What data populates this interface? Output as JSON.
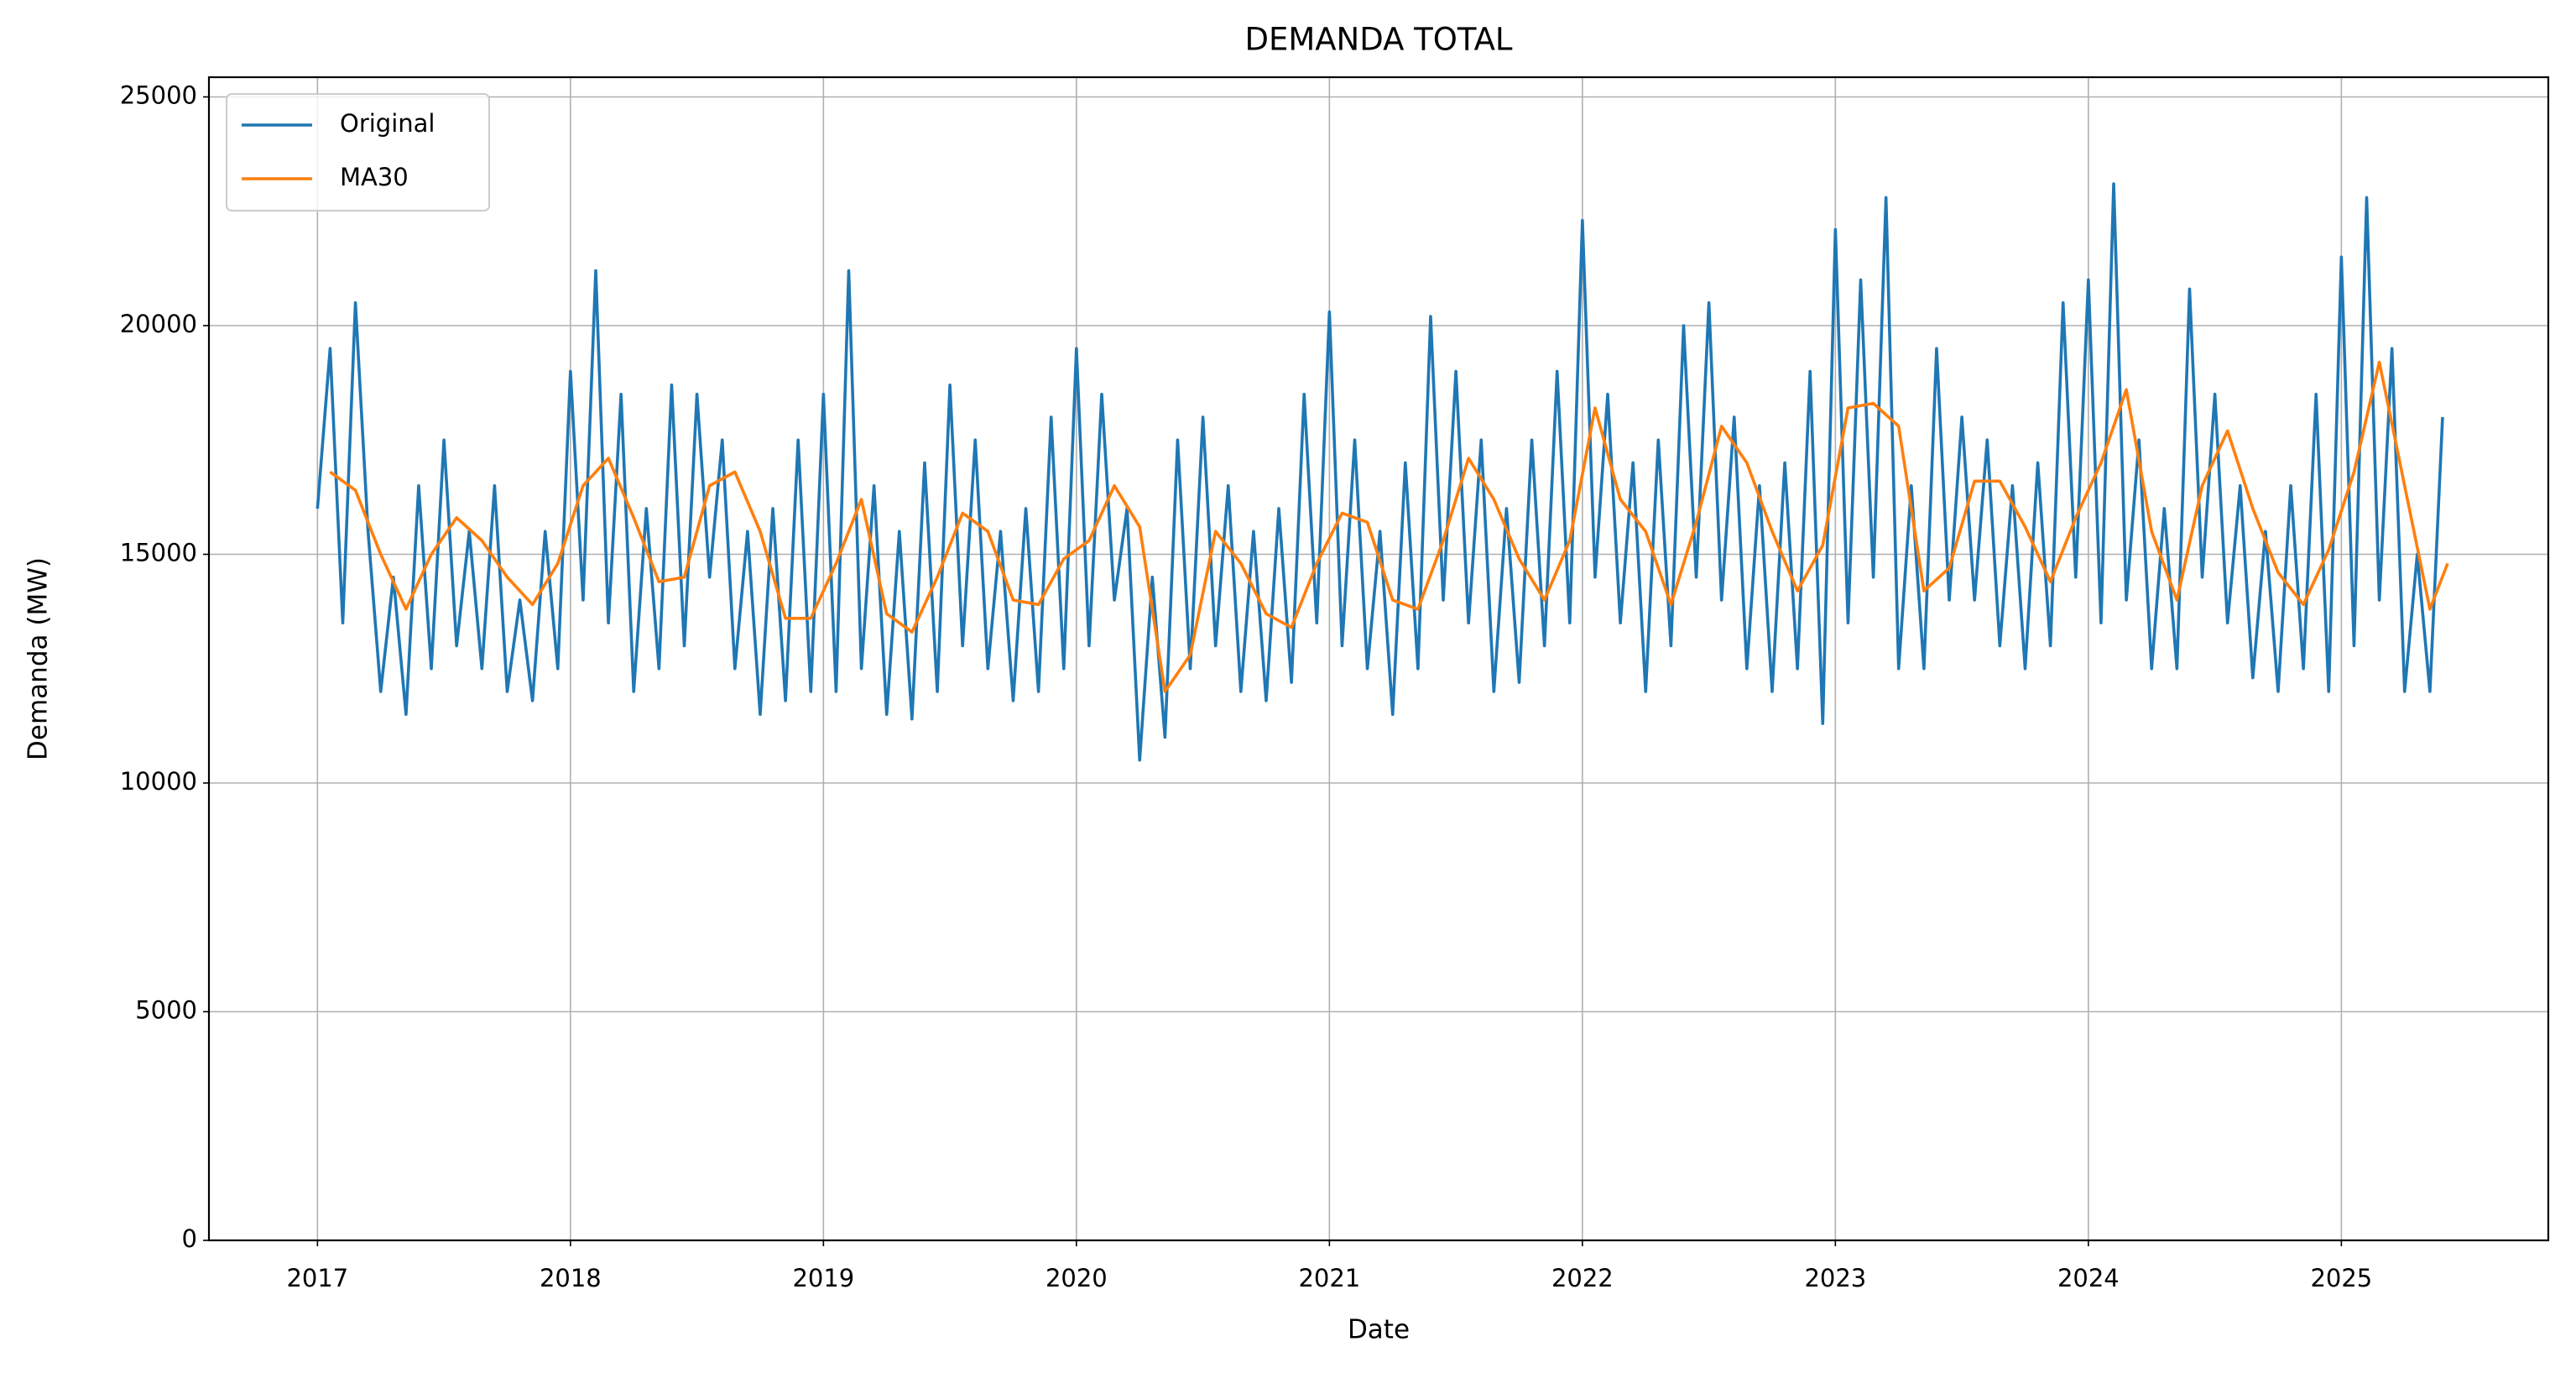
{
  "chart_data": {
    "type": "line",
    "title": "DEMANDA TOTAL",
    "x_label": "Date",
    "y_label": "Demanda (MW)",
    "xlim": [
      2016.571,
      2025.818
    ],
    "xticks": [
      2017,
      2018,
      2019,
      2020,
      2021,
      2022,
      2023,
      2024,
      2025
    ],
    "ylim": [
      0,
      25431
    ],
    "yticks": [
      0,
      5000,
      10000,
      15000,
      20000,
      25000
    ],
    "grid": true,
    "legend": "upper left",
    "series": [
      {
        "name": "Original",
        "color": "#1f77b4",
        "x": [
          2017,
          2017.05,
          2017.1,
          2017.15,
          2017.2,
          2017.25,
          2017.3,
          2017.35,
          2017.4,
          2017.45,
          2017.5,
          2017.55,
          2017.6,
          2017.65,
          2017.7,
          2017.75,
          2017.8,
          2017.85,
          2017.9,
          2017.95,
          2018,
          2018.05,
          2018.1,
          2018.15,
          2018.2,
          2018.25,
          2018.3,
          2018.35,
          2018.4,
          2018.45,
          2018.5,
          2018.55,
          2018.6,
          2018.65,
          2018.7,
          2018.75,
          2018.8,
          2018.85,
          2018.9,
          2018.95,
          2019,
          2019.05,
          2019.1,
          2019.15,
          2019.2,
          2019.25,
          2019.3,
          2019.35,
          2019.4,
          2019.45,
          2019.5,
          2019.55,
          2019.6,
          2019.65,
          2019.7,
          2019.75,
          2019.8,
          2019.85,
          2019.9,
          2019.95,
          2020,
          2020.05,
          2020.1,
          2020.15,
          2020.2,
          2020.25,
          2020.3,
          2020.35,
          2020.4,
          2020.45,
          2020.5,
          2020.55,
          2020.6,
          2020.65,
          2020.7,
          2020.75,
          2020.8,
          2020.85,
          2020.9,
          2020.95,
          2021,
          2021.05,
          2021.1,
          2021.15,
          2021.2,
          2021.25,
          2021.3,
          2021.35,
          2021.4,
          2021.45,
          2021.5,
          2021.55,
          2021.6,
          2021.65,
          2021.7,
          2021.75,
          2021.8,
          2021.85,
          2021.9,
          2021.95,
          2022,
          2022.05,
          2022.1,
          2022.15,
          2022.2,
          2022.25,
          2022.3,
          2022.35,
          2022.4,
          2022.45,
          2022.5,
          2022.55,
          2022.6,
          2022.65,
          2022.7,
          2022.75,
          2022.8,
          2022.85,
          2022.9,
          2022.95,
          2023,
          2023.05,
          2023.1,
          2023.15,
          2023.2,
          2023.25,
          2023.3,
          2023.35,
          2023.4,
          2023.45,
          2023.5,
          2023.55,
          2023.6,
          2023.65,
          2023.7,
          2023.75,
          2023.8,
          2023.85,
          2023.9,
          2023.95,
          2024,
          2024.05,
          2024.1,
          2024.15,
          2024.2,
          2024.25,
          2024.3,
          2024.35,
          2024.4,
          2024.45,
          2024.5,
          2024.55,
          2024.6,
          2024.65,
          2024.7,
          2024.75,
          2024.8,
          2024.85,
          2024.9,
          2024.95,
          2025,
          2025.05,
          2025.1,
          2025.15,
          2025.2,
          2025.25,
          2025.3,
          2025.35,
          2025.4
        ],
        "values": [
          16000,
          19500,
          13500,
          20500,
          15500,
          12000,
          14500,
          11500,
          16500,
          12500,
          17500,
          13000,
          15500,
          12500,
          16500,
          12000,
          14000,
          11800,
          15500,
          12500,
          19000,
          14000,
          21200,
          13500,
          18500,
          12000,
          16000,
          12500,
          18700,
          13000,
          18500,
          14500,
          17500,
          12500,
          15500,
          11500,
          16000,
          11800,
          17500,
          12000,
          18500,
          12000,
          21200,
          12500,
          16500,
          11500,
          15500,
          11400,
          17000,
          12000,
          18700,
          13000,
          17500,
          12500,
          15500,
          11800,
          16000,
          12000,
          18000,
          12500,
          19500,
          13000,
          18500,
          14000,
          16000,
          10500,
          14500,
          11000,
          17500,
          12500,
          18000,
          13000,
          16500,
          12000,
          15500,
          11800,
          16000,
          12200,
          18500,
          13500,
          20300,
          13000,
          17500,
          12500,
          15500,
          11500,
          17000,
          12500,
          20200,
          14000,
          19000,
          13500,
          17500,
          12000,
          16000,
          12200,
          17500,
          13000,
          19000,
          13500,
          22300,
          14500,
          18500,
          13500,
          17000,
          12000,
          17500,
          13000,
          20000,
          14500,
          20500,
          14000,
          18000,
          12500,
          16500,
          12000,
          17000,
          12500,
          19000,
          11300,
          22100,
          13500,
          21000,
          14500,
          22800,
          12500,
          16500,
          12500,
          19500,
          14000,
          18000,
          14000,
          17500,
          13000,
          16500,
          12500,
          17000,
          13000,
          20500,
          14500,
          21000,
          13500,
          23100,
          14000,
          17500,
          12500,
          16000,
          12500,
          20800,
          14500,
          18500,
          13500,
          16500,
          12300,
          15500,
          12000,
          16500,
          12500,
          18500,
          12000,
          21500,
          13000,
          22800,
          14000,
          19500,
          12000,
          15000,
          12000,
          18000
        ]
      },
      {
        "name": "MA30",
        "color": "#ff7f0e",
        "x": [
          2017.05,
          2017.15,
          2017.25,
          2017.35,
          2017.45,
          2017.55,
          2017.65,
          2017.75,
          2017.85,
          2017.95,
          2018.05,
          2018.15,
          2018.25,
          2018.35,
          2018.45,
          2018.55,
          2018.65,
          2018.75,
          2018.85,
          2018.95,
          2019.05,
          2019.15,
          2019.25,
          2019.35,
          2019.45,
          2019.55,
          2019.65,
          2019.75,
          2019.85,
          2019.95,
          2020.05,
          2020.15,
          2020.25,
          2020.35,
          2020.45,
          2020.55,
          2020.65,
          2020.75,
          2020.85,
          2020.95,
          2021.05,
          2021.15,
          2021.25,
          2021.35,
          2021.45,
          2021.55,
          2021.65,
          2021.75,
          2021.85,
          2021.95,
          2022.05,
          2022.15,
          2022.25,
          2022.35,
          2022.45,
          2022.55,
          2022.65,
          2022.75,
          2022.85,
          2022.95,
          2023.05,
          2023.15,
          2023.25,
          2023.35,
          2023.45,
          2023.55,
          2023.65,
          2023.75,
          2023.85,
          2023.95,
          2024.05,
          2024.15,
          2024.25,
          2024.35,
          2024.45,
          2024.55,
          2024.65,
          2024.75,
          2024.85,
          2024.95,
          2025.05,
          2025.15,
          2025.25,
          2025.35,
          2025.42
        ],
        "values": [
          16800,
          16400,
          15000,
          13800,
          15000,
          15800,
          15300,
          14500,
          13900,
          14800,
          16500,
          17100,
          15800,
          14400,
          14500,
          16500,
          16800,
          15500,
          13600,
          13600,
          14800,
          16200,
          13700,
          13300,
          14500,
          15900,
          15500,
          14000,
          13900,
          14900,
          15300,
          16500,
          15600,
          12000,
          12800,
          15500,
          14800,
          13700,
          13400,
          14800,
          15900,
          15700,
          14000,
          13800,
          15300,
          17100,
          16200,
          14900,
          14000,
          15300,
          18200,
          16200,
          15500,
          13900,
          15700,
          17800,
          17000,
          15500,
          14200,
          15200,
          18200,
          18300,
          17800,
          14200,
          14700,
          16600,
          16600,
          15600,
          14400,
          15800,
          17000,
          18600,
          15500,
          14000,
          16500,
          17700,
          16000,
          14600,
          13900,
          15100,
          16800,
          19200,
          16500,
          13800,
          14800
        ]
      }
    ]
  }
}
